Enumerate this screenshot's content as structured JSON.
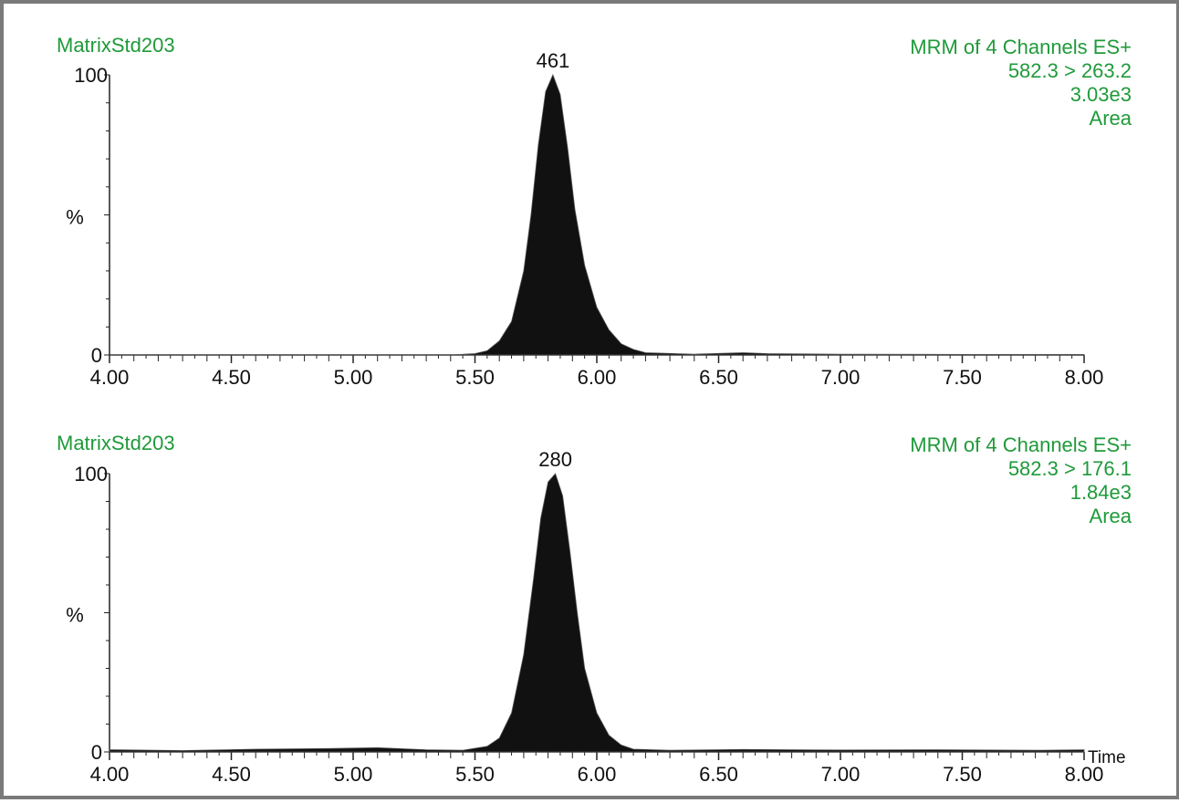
{
  "chart_data": [
    {
      "type": "area",
      "sample": "MatrixStd203",
      "header_lines": [
        "MRM of 4 Channels ES+",
        "582.3 > 263.2",
        "3.03e3",
        "Area"
      ],
      "ylabel": "%",
      "xlabel": "",
      "ylim": [
        0,
        100
      ],
      "xlim": [
        4.0,
        8.0
      ],
      "y_ticks": [
        "0",
        "100"
      ],
      "x_ticks": [
        "4.00",
        "4.50",
        "5.00",
        "5.50",
        "6.00",
        "6.50",
        "7.00",
        "7.50",
        "8.00"
      ],
      "x_tick_values": [
        4.0,
        4.5,
        5.0,
        5.5,
        6.0,
        6.5,
        7.0,
        7.5,
        8.0
      ],
      "peak": {
        "label": "461",
        "x": 5.82,
        "y": 100
      },
      "series": [
        {
          "x": [
            4.0,
            4.5,
            5.0,
            5.4,
            5.5,
            5.55,
            5.6,
            5.65,
            5.7,
            5.73,
            5.76,
            5.79,
            5.82,
            5.85,
            5.88,
            5.91,
            5.95,
            6.0,
            6.05,
            6.1,
            6.15,
            6.2,
            6.4,
            6.6,
            6.7,
            7.0,
            7.5,
            8.0
          ],
          "y": [
            0.0,
            0.0,
            0.0,
            0.0,
            0.5,
            1.5,
            5,
            12,
            30,
            50,
            75,
            94,
            100,
            93,
            74,
            52,
            32,
            17,
            9,
            4,
            2,
            0.8,
            0.3,
            0.8,
            0.5,
            0.3,
            0.2,
            0.2
          ]
        }
      ]
    },
    {
      "type": "area",
      "sample": "MatrixStd203",
      "header_lines": [
        "MRM of 4 Channels ES+",
        "582.3 > 176.1",
        "1.84e3",
        "Area"
      ],
      "ylabel": "%",
      "xlabel": "Time",
      "ylim": [
        0,
        100
      ],
      "xlim": [
        4.0,
        8.0
      ],
      "y_ticks": [
        "0",
        "100"
      ],
      "x_ticks": [
        "4.00",
        "4.50",
        "5.00",
        "5.50",
        "6.00",
        "6.50",
        "7.00",
        "7.50",
        "8.00"
      ],
      "x_tick_values": [
        4.0,
        4.5,
        5.0,
        5.5,
        6.0,
        6.5,
        7.0,
        7.5,
        8.0
      ],
      "peak": {
        "label": "280",
        "x": 5.83,
        "y": 100
      },
      "series": [
        {
          "x": [
            4.0,
            4.3,
            4.6,
            4.9,
            5.1,
            5.3,
            5.45,
            5.55,
            5.6,
            5.65,
            5.7,
            5.74,
            5.77,
            5.8,
            5.83,
            5.86,
            5.89,
            5.92,
            5.95,
            6.0,
            6.05,
            6.1,
            6.15,
            6.3,
            6.6,
            7.0,
            7.4,
            7.8,
            8.0
          ],
          "y": [
            0.8,
            0.5,
            1.0,
            1.2,
            1.5,
            0.8,
            0.6,
            2,
            5,
            14,
            35,
            62,
            84,
            97,
            100,
            92,
            72,
            50,
            30,
            14,
            6,
            2.5,
            1.0,
            0.6,
            0.9,
            0.7,
            0.8,
            0.6,
            0.8
          ]
        }
      ]
    }
  ],
  "colors": {
    "header_text": "#1f9a3a",
    "peak_fill": "#111111",
    "axis": "#222222",
    "frame": "#7a7a7a"
  }
}
